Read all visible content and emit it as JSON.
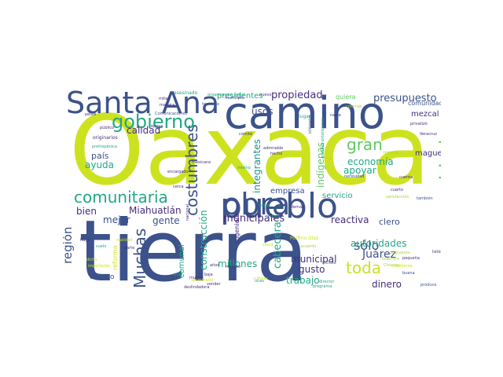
{
  "palette": {
    "yellow": "#cde21f",
    "lime": "#a6d634",
    "green": "#5ec962",
    "teal": "#22a884",
    "cyan": "#21918c",
    "blue": "#2c728e",
    "steel": "#3b528b",
    "indigo": "#472d7b",
    "purple": "#440154"
  },
  "words": [
    "Oaxaca",
    "tierra",
    "camino",
    "pueblo",
    "Santa Ana",
    "obra",
    "comunidades",
    "gobierno",
    "costumbres",
    "comunitaria",
    "gran",
    "Muchas",
    "toda",
    "sólo",
    "región",
    "presupuesto",
    "propiedad",
    "municipales",
    "indígenas",
    "apoyar",
    "economía",
    "autoridades",
    "Juárez",
    "construcción",
    "integrantes",
    "cabecera",
    "Miahuatlán",
    "comunal",
    "municipal",
    "mejor",
    "país",
    "ayuda",
    "calidad",
    "usos",
    "presidentes",
    "gente",
    "bien",
    "trabajo",
    "reactiva",
    "dinero",
    "gusto",
    "millones",
    "clero",
    "empresa",
    "servicio",
    "maguey",
    "mezcal",
    "comunidad",
    "quiera",
    "ingeniero",
    "reforma",
    "tiempo",
    "asesinado",
    "lugar",
    "cuenta",
    "necesidad",
    "Porfirio Díaz",
    "California",
    "Chiapas",
    "Veracruz",
    "organización social",
    "Comunicaciones",
    "grandes extensiones",
    "programa",
    "originarios",
    "prehispánica",
    "pesos",
    "territorio",
    "kilómetro",
    "mitad",
    "manera",
    "encargado",
    "admirable",
    "hecho",
    "mexicano",
    "mismo",
    "parte",
    "dicho",
    "realidad",
    "importante",
    "historia",
    "deslindadora",
    "vender",
    "respeto",
    "unas",
    "acuerdo",
    "nacional",
    "director",
    "cuarto",
    "alumbrado",
    "propuesta",
    "listón",
    "produce",
    "buena",
    "satisfacción",
    "privatizó",
    "público",
    "cerca",
    "municipio",
    "nuevo",
    "comité",
    "incluso",
    "pequeña",
    "Guerrero",
    "también",
    "época",
    "haga",
    "suelo",
    "otros",
    "demás",
    "cultivar",
    "plata",
    "baja",
    "mucha",
    "años",
    "tomar",
    "salud",
    "nadie",
    "colonias"
  ]
}
